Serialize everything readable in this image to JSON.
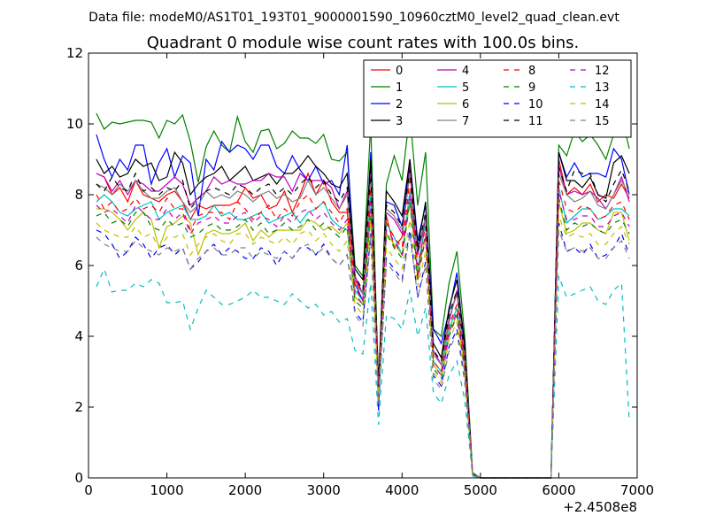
{
  "chart_data": {
    "type": "line",
    "suptitle": "Data file: modeM0/AS1T01_193T01_9000001590_10960cztM0_level2_quad_clean.evt",
    "title": "Quadrant 0 module wise count rates with 100.0s bins.",
    "xlabel": "",
    "ylabel": "",
    "x_offset_label": "+2.4508e8",
    "xlim": [
      0,
      7000
    ],
    "ylim": [
      0,
      12
    ],
    "xticks": [
      "0",
      "1000",
      "2000",
      "3000",
      "4000",
      "5000",
      "6000",
      "7000"
    ],
    "yticks": [
      "0",
      "2",
      "4",
      "6",
      "8",
      "10",
      "12"
    ],
    "grid": false,
    "legend_position": "top-right",
    "x": [
      100,
      200,
      300,
      400,
      500,
      600,
      700,
      800,
      900,
      1000,
      1100,
      1200,
      1300,
      1400,
      1500,
      1600,
      1700,
      1800,
      1900,
      2000,
      2100,
      2200,
      2300,
      2400,
      2500,
      2600,
      2700,
      2800,
      2900,
      3000,
      3100,
      3200,
      3300,
      3400,
      3500,
      3600,
      3700,
      3800,
      3900,
      4000,
      4100,
      4200,
      4300,
      4400,
      4500,
      4600,
      4700,
      4800,
      4900,
      5000,
      5100,
      5200,
      5300,
      5400,
      5500,
      5600,
      5700,
      5800,
      5900,
      6000,
      6100,
      6200,
      6300,
      6400,
      6500,
      6600,
      6700,
      6800,
      6900
    ],
    "series": [
      {
        "name": "0",
        "color": "#ff0000",
        "dash": "solid",
        "values": [
          8.6,
          8.5,
          8.0,
          8.2,
          7.8,
          8.4,
          8.0,
          7.9,
          7.8,
          8.0,
          8.1,
          7.8,
          7.3,
          7.7,
          7.6,
          7.7,
          7.7,
          7.7,
          7.8,
          8.2,
          7.9,
          8.0,
          7.6,
          7.7,
          8.1,
          7.5,
          8.0,
          8.6,
          8.0,
          8.4,
          7.8,
          7.5,
          7.5,
          5.6,
          5.2,
          8.7,
          2.7,
          7.4,
          6.5,
          6.8,
          8.8,
          5.6,
          7.4,
          3.5,
          3.2,
          4.5,
          5.2,
          3.4,
          0.1,
          0,
          0,
          0,
          0,
          0,
          0,
          0,
          0,
          0,
          0,
          9.0,
          8.0,
          8.2,
          8.0,
          8.3,
          7.8,
          8.0,
          7.9,
          8.3,
          7.9
        ]
      },
      {
        "name": "1",
        "color": "#008000",
        "dash": "solid",
        "values": [
          10.3,
          9.85,
          10.05,
          10.0,
          10.05,
          10.1,
          10.1,
          10.05,
          9.6,
          10.1,
          10.0,
          10.25,
          9.5,
          8.35,
          9.35,
          9.8,
          9.4,
          9.2,
          10.2,
          9.5,
          9.2,
          9.8,
          9.85,
          9.3,
          9.45,
          9.8,
          9.6,
          9.6,
          9.45,
          9.7,
          9.0,
          8.95,
          9.2,
          6.0,
          5.7,
          10.0,
          2.5,
          8.3,
          9.1,
          8.4,
          10.3,
          7.7,
          9.2,
          4.2,
          4.0,
          5.5,
          6.4,
          4.0,
          0.15,
          0,
          0,
          0,
          0,
          0,
          0,
          0,
          0,
          0,
          0,
          9.4,
          9.1,
          9.8,
          9.5,
          9.7,
          9.4,
          9.0,
          9.7,
          10.2,
          9.3
        ]
      },
      {
        "name": "2",
        "color": "#0000ff",
        "dash": "solid",
        "values": [
          9.7,
          9.0,
          8.5,
          9.0,
          8.7,
          9.4,
          9.4,
          8.3,
          8.9,
          9.3,
          8.5,
          9.1,
          8.9,
          7.4,
          9.0,
          8.7,
          9.5,
          9.2,
          9.4,
          9.3,
          9.0,
          9.4,
          9.4,
          8.8,
          8.6,
          9.1,
          8.7,
          8.4,
          8.8,
          8.3,
          8.4,
          8.0,
          9.4,
          5.5,
          5.0,
          9.2,
          1.9,
          7.8,
          7.7,
          7.1,
          9.0,
          6.7,
          7.7,
          4.2,
          3.8,
          4.7,
          5.8,
          3.6,
          0.1,
          0,
          0,
          0,
          0,
          0,
          0,
          0,
          0,
          0,
          0,
          9.2,
          8.5,
          8.9,
          8.5,
          8.6,
          8.6,
          8.5,
          9.3,
          9.0,
          8.0
        ]
      },
      {
        "name": "3",
        "color": "#000000",
        "dash": "solid",
        "values": [
          9.0,
          8.6,
          8.8,
          8.5,
          8.6,
          9.0,
          8.8,
          8.9,
          8.4,
          8.5,
          9.2,
          8.9,
          8.0,
          8.3,
          8.5,
          8.6,
          8.8,
          8.4,
          8.6,
          8.8,
          8.4,
          8.5,
          8.6,
          8.3,
          8.6,
          8.6,
          8.8,
          9.1,
          8.8,
          8.6,
          8.3,
          8.2,
          8.6,
          5.9,
          5.6,
          9.0,
          2.7,
          8.1,
          7.8,
          7.4,
          9.0,
          6.5,
          7.8,
          3.8,
          3.4,
          4.8,
          5.6,
          3.8,
          0.1,
          0,
          0,
          0,
          0,
          0,
          0,
          0,
          0,
          0,
          0,
          9.2,
          8.4,
          8.4,
          8.2,
          8.5,
          8.0,
          7.9,
          8.9,
          9.1,
          8.6
        ]
      },
      {
        "name": "4",
        "color": "#bf00bf",
        "dash": "solid",
        "values": [
          8.6,
          8.5,
          8.1,
          8.4,
          8.0,
          8.4,
          8.3,
          8.1,
          8.1,
          8.3,
          8.5,
          8.3,
          7.7,
          7.9,
          8.1,
          8.5,
          8.3,
          8.4,
          8.3,
          8.3,
          8.4,
          8.4,
          8.6,
          8.5,
          8.5,
          8.1,
          8.6,
          8.4,
          8.4,
          8.4,
          8.2,
          7.6,
          8.1,
          5.7,
          5.2,
          8.6,
          2.2,
          7.5,
          7.3,
          6.9,
          8.6,
          6.3,
          7.3,
          3.6,
          3.2,
          4.4,
          5.3,
          3.4,
          0.1,
          0,
          0,
          0,
          0,
          0,
          0,
          0,
          0,
          0,
          0,
          8.8,
          8.0,
          8.1,
          8.0,
          8.1,
          7.9,
          7.6,
          8.0,
          8.5,
          7.8
        ]
      },
      {
        "name": "5",
        "color": "#00bfbf",
        "dash": "solid",
        "values": [
          7.8,
          8.0,
          7.8,
          7.5,
          7.4,
          7.6,
          7.7,
          7.8,
          7.3,
          7.5,
          7.6,
          7.7,
          7.3,
          7.3,
          7.4,
          7.7,
          7.4,
          7.5,
          7.3,
          7.3,
          7.4,
          7.5,
          7.2,
          7.3,
          7.4,
          7.5,
          7.2,
          7.5,
          7.6,
          7.8,
          7.3,
          7.1,
          7.0,
          5.3,
          5.0,
          8.0,
          2.4,
          7.2,
          6.8,
          6.3,
          8.1,
          5.9,
          7.2,
          3.3,
          3.0,
          4.2,
          4.8,
          3.2,
          0.1,
          0,
          0,
          0,
          0,
          0,
          0,
          0,
          0,
          0,
          0,
          8.2,
          7.2,
          7.4,
          7.6,
          7.6,
          7.3,
          7.4,
          7.6,
          7.6,
          7.4
        ]
      },
      {
        "name": "6",
        "color": "#bfbf00",
        "dash": "solid",
        "values": [
          7.6,
          7.6,
          7.5,
          7.3,
          7.0,
          7.3,
          7.5,
          7.3,
          6.5,
          7.1,
          7.2,
          7.4,
          7.2,
          6.3,
          6.9,
          7.0,
          6.9,
          6.9,
          7.0,
          7.2,
          6.7,
          7.0,
          6.8,
          7.0,
          7.0,
          7.0,
          7.0,
          7.3,
          7.2,
          7.0,
          7.1,
          6.9,
          7.2,
          5.1,
          4.9,
          7.4,
          2.4,
          6.9,
          6.6,
          6.3,
          7.8,
          5.8,
          6.8,
          3.2,
          2.9,
          4.1,
          4.6,
          3.1,
          0.1,
          0,
          0,
          0,
          0,
          0,
          0,
          0,
          0,
          0,
          0,
          7.8,
          6.9,
          7.0,
          7.2,
          7.2,
          7.0,
          6.9,
          7.5,
          7.5,
          6.7
        ]
      },
      {
        "name": "7",
        "color": "#808080",
        "dash": "solid",
        "values": [
          8.3,
          8.2,
          8.0,
          8.3,
          8.1,
          8.4,
          8.1,
          7.9,
          7.9,
          8.1,
          8.2,
          7.8,
          7.5,
          7.7,
          8.1,
          7.9,
          8.0,
          7.9,
          8.1,
          8.0,
          7.8,
          8.0,
          8.1,
          7.9,
          8.0,
          7.8,
          7.9,
          8.4,
          8.0,
          8.2,
          7.9,
          7.6,
          8.0,
          5.5,
          5.2,
          8.5,
          2.5,
          7.6,
          7.4,
          7.0,
          8.6,
          6.4,
          7.4,
          3.5,
          3.2,
          4.5,
          5.2,
          3.5,
          0.1,
          0,
          0,
          0,
          0,
          0,
          0,
          0,
          0,
          0,
          0,
          8.6,
          8.0,
          7.8,
          7.9,
          8.1,
          7.7,
          7.6,
          8.0,
          8.4,
          8.0
        ]
      },
      {
        "name": "8",
        "color": "#ff0000",
        "dash": "dashed",
        "values": [
          8.0,
          7.6,
          7.8,
          7.5,
          7.6,
          7.9,
          7.6,
          7.7,
          7.5,
          7.9,
          7.6,
          7.6,
          7.0,
          7.4,
          7.5,
          7.5,
          7.5,
          7.3,
          7.8,
          7.6,
          7.3,
          7.5,
          7.7,
          7.3,
          7.6,
          7.4,
          7.8,
          8.0,
          7.6,
          7.8,
          7.5,
          7.2,
          7.6,
          5.4,
          5.0,
          8.2,
          2.4,
          7.2,
          6.8,
          6.5,
          8.4,
          6.0,
          7.1,
          3.3,
          3.0,
          4.3,
          4.9,
          3.3,
          0.1,
          0,
          0,
          0,
          0,
          0,
          0,
          0,
          0,
          0,
          0,
          8.4,
          7.6,
          7.5,
          7.7,
          7.6,
          7.3,
          7.4,
          7.7,
          7.8,
          7.3
        ]
      },
      {
        "name": "9",
        "color": "#008000",
        "dash": "dashed",
        "values": [
          7.4,
          7.5,
          7.2,
          7.3,
          7.1,
          7.5,
          7.5,
          7.1,
          7.0,
          7.3,
          7.1,
          7.2,
          6.8,
          6.9,
          7.1,
          7.2,
          7.0,
          7.0,
          7.1,
          7.3,
          7.0,
          7.2,
          6.9,
          7.0,
          7.2,
          7.0,
          7.1,
          7.3,
          7.0,
          7.2,
          7.0,
          6.8,
          7.1,
          5.0,
          4.8,
          7.6,
          2.2,
          6.9,
          6.5,
          6.2,
          7.8,
          5.6,
          6.8,
          3.1,
          2.8,
          4.0,
          4.6,
          3.0,
          0.1,
          0,
          0,
          0,
          0,
          0,
          0,
          0,
          0,
          0,
          0,
          7.9,
          7.0,
          7.2,
          7.1,
          7.2,
          7.0,
          6.9,
          7.2,
          7.3,
          6.9
        ]
      },
      {
        "name": "10",
        "color": "#0000ff",
        "dash": "dashed",
        "values": [
          7.0,
          6.9,
          6.6,
          6.2,
          6.4,
          6.8,
          6.6,
          6.2,
          6.5,
          6.6,
          6.3,
          6.5,
          5.9,
          6.1,
          6.4,
          6.6,
          6.3,
          6.5,
          6.4,
          6.2,
          6.2,
          6.5,
          6.4,
          6.0,
          6.4,
          6.2,
          6.5,
          6.5,
          6.3,
          6.6,
          6.2,
          6.0,
          6.3,
          4.7,
          4.4,
          6.9,
          2.0,
          6.2,
          5.9,
          5.6,
          7.0,
          5.1,
          6.1,
          2.9,
          2.6,
          3.7,
          4.2,
          2.8,
          0.1,
          0,
          0,
          0,
          0,
          0,
          0,
          0,
          0,
          0,
          0,
          7.2,
          6.4,
          6.5,
          6.3,
          6.6,
          6.2,
          6.3,
          6.5,
          6.9,
          6.3
        ]
      },
      {
        "name": "11",
        "color": "#000000",
        "dash": "dashed",
        "values": [
          8.3,
          8.1,
          8.5,
          8.2,
          8.1,
          8.6,
          8.1,
          8.2,
          8.0,
          8.2,
          8.1,
          8.4,
          7.6,
          7.9,
          8.1,
          8.2,
          8.1,
          8.0,
          8.3,
          8.2,
          8.0,
          8.2,
          8.3,
          8.0,
          8.2,
          8.0,
          8.3,
          8.5,
          8.2,
          8.4,
          8.0,
          7.8,
          8.2,
          5.7,
          5.3,
          8.7,
          2.5,
          7.7,
          7.5,
          7.1,
          8.7,
          6.4,
          7.5,
          3.6,
          3.3,
          4.6,
          5.3,
          3.5,
          0.1,
          0,
          0,
          0,
          0,
          0,
          0,
          0,
          0,
          0,
          0,
          8.8,
          8.1,
          8.7,
          8.6,
          8.6,
          8.0,
          7.8,
          8.3,
          8.7,
          8.1
        ]
      },
      {
        "name": "12",
        "color": "#bf00bf",
        "dash": "dashed",
        "values": [
          7.7,
          7.5,
          7.6,
          7.4,
          7.2,
          7.7,
          7.5,
          7.3,
          7.3,
          7.6,
          7.3,
          7.5,
          6.9,
          7.2,
          7.3,
          7.4,
          7.2,
          7.2,
          7.4,
          7.5,
          7.2,
          7.4,
          7.3,
          7.1,
          7.4,
          7.2,
          7.5,
          7.6,
          7.3,
          7.5,
          7.2,
          7.0,
          7.3,
          5.2,
          4.9,
          7.8,
          2.3,
          7.0,
          6.7,
          6.3,
          8.0,
          5.8,
          6.9,
          3.2,
          2.9,
          4.1,
          4.7,
          3.1,
          0.1,
          0,
          0,
          0,
          0,
          0,
          0,
          0,
          0,
          0,
          0,
          8.1,
          7.3,
          7.3,
          7.4,
          7.4,
          7.1,
          7.1,
          7.4,
          7.5,
          7.1
        ]
      },
      {
        "name": "13",
        "color": "#00bfbf",
        "dash": "dashed",
        "values": [
          5.4,
          5.9,
          5.25,
          5.3,
          5.3,
          5.5,
          5.4,
          5.6,
          5.5,
          4.95,
          4.95,
          5.0,
          4.2,
          4.8,
          5.3,
          5.1,
          4.9,
          4.9,
          5.0,
          5.1,
          5.3,
          5.1,
          5.1,
          5.0,
          4.9,
          5.2,
          5.0,
          4.8,
          4.9,
          4.6,
          4.7,
          4.4,
          4.5,
          3.6,
          3.5,
          5.5,
          1.5,
          4.6,
          4.5,
          4.2,
          5.3,
          4.0,
          4.8,
          2.4,
          2.1,
          2.9,
          3.3,
          2.2,
          0.05,
          0,
          0,
          0,
          0,
          0,
          0,
          0,
          0,
          0,
          0,
          5.7,
          5.1,
          5.2,
          5.3,
          5.4,
          5.0,
          4.9,
          5.3,
          5.5,
          1.6
        ]
      },
      {
        "name": "14",
        "color": "#bfbf00",
        "dash": "dashed",
        "values": [
          7.2,
          7.0,
          6.9,
          6.8,
          6.8,
          7.1,
          6.8,
          6.9,
          6.5,
          6.8,
          6.8,
          6.9,
          6.3,
          6.6,
          6.8,
          6.9,
          6.7,
          6.6,
          6.9,
          6.9,
          6.6,
          6.8,
          6.7,
          6.6,
          6.8,
          6.6,
          6.9,
          7.0,
          6.7,
          6.9,
          6.6,
          6.4,
          6.7,
          4.9,
          4.6,
          7.2,
          2.2,
          6.5,
          6.2,
          5.9,
          7.3,
          5.4,
          6.4,
          3.0,
          2.7,
          3.9,
          4.4,
          2.9,
          0.1,
          0,
          0,
          0,
          0,
          0,
          0,
          0,
          0,
          0,
          0,
          7.4,
          6.8,
          6.9,
          6.8,
          6.9,
          6.6,
          6.6,
          6.9,
          7.1,
          6.6
        ]
      },
      {
        "name": "15",
        "color": "#808080",
        "dash": "dashed",
        "values": [
          6.8,
          6.6,
          6.5,
          6.4,
          6.4,
          6.7,
          6.5,
          6.4,
          6.3,
          6.5,
          6.4,
          6.5,
          5.9,
          6.2,
          6.4,
          6.5,
          6.3,
          6.3,
          6.5,
          6.5,
          6.2,
          6.4,
          6.3,
          6.2,
          6.4,
          6.2,
          6.5,
          6.6,
          6.3,
          6.5,
          6.2,
          6.0,
          6.3,
          4.6,
          4.3,
          6.8,
          2.1,
          6.1,
          5.8,
          5.5,
          6.9,
          5.1,
          6.0,
          2.8,
          2.5,
          3.6,
          4.1,
          2.7,
          0.1,
          0,
          0,
          0,
          0,
          0,
          0,
          0,
          0,
          0,
          0,
          7.0,
          6.4,
          6.5,
          6.4,
          6.5,
          6.2,
          6.2,
          6.5,
          6.7,
          6.2
        ]
      }
    ]
  }
}
